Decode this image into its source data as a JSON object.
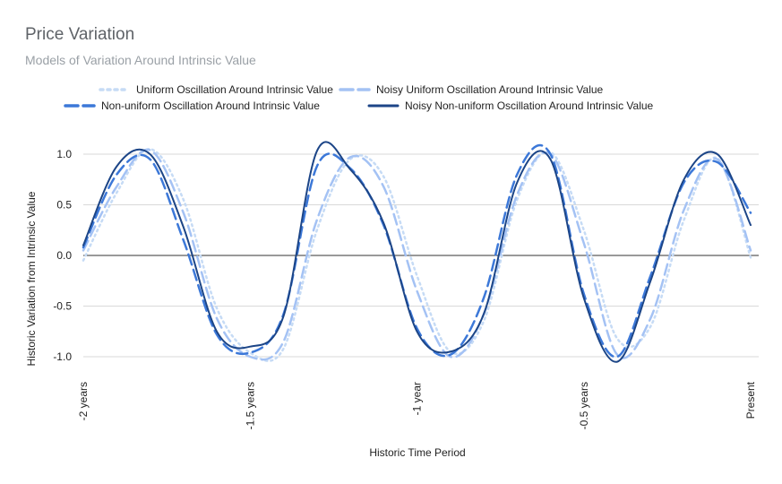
{
  "chart_data": {
    "type": "line",
    "title": "Price Variation",
    "subtitle": "Models of Variation Around Intrinsic Value",
    "xlabel": "Historic Time Period",
    "ylabel": "Historic Variation from Intrinsic Value",
    "ylim": [
      -1.0,
      1.0
    ],
    "xlim": [
      -2.0,
      0.0
    ],
    "y_ticks": [
      {
        "value": 1.0,
        "label": "1.0"
      },
      {
        "value": 0.5,
        "label": "0.5"
      },
      {
        "value": 0.0,
        "label": "0.0"
      },
      {
        "value": -0.5,
        "label": "-0.5"
      },
      {
        "value": -1.0,
        "label": "-1.0"
      }
    ],
    "x_ticks": [
      {
        "value": -2.0,
        "label": "-2 years"
      },
      {
        "value": -1.5,
        "label": "-1.5 years"
      },
      {
        "value": -1.0,
        "label": "-1 year"
      },
      {
        "value": -0.5,
        "label": "-0.5 years"
      },
      {
        "value": 0.0,
        "label": "Present"
      }
    ],
    "grid": true,
    "legend_position": "top",
    "series": [
      {
        "name": "Uniform Oscillation Around Intrinsic Value",
        "color": "#c6dbf5",
        "style": "dotted",
        "x": [
          -2.0,
          -1.9,
          -1.8,
          -1.7,
          -1.6,
          -1.5,
          -1.4,
          -1.3,
          -1.2,
          -1.1,
          -1.0,
          -0.9,
          -0.8,
          -0.7,
          -0.6,
          -0.5,
          -0.4,
          -0.3,
          -0.2,
          -0.1,
          0.0
        ],
        "y": [
          -0.05,
          0.62,
          1.05,
          0.55,
          -0.52,
          -0.96,
          -0.92,
          0.25,
          0.95,
          0.78,
          -0.2,
          -0.95,
          -0.65,
          0.55,
          1.02,
          0.25,
          -0.82,
          -0.7,
          0.35,
          0.96,
          -0.02
        ]
      },
      {
        "name": "Noisy Uniform Oscillation Around Intrinsic Value",
        "color": "#a4c2f4",
        "style": "dashed",
        "x": [
          -2.0,
          -1.9,
          -1.8,
          -1.7,
          -1.6,
          -1.5,
          -1.4,
          -1.3,
          -1.2,
          -1.1,
          -1.0,
          -0.9,
          -0.8,
          -0.7,
          -0.6,
          -0.5,
          -0.4,
          -0.3,
          -0.2,
          -0.1,
          0.0
        ],
        "y": [
          0.05,
          0.68,
          1.04,
          0.42,
          -0.62,
          -1.0,
          -0.85,
          0.35,
          0.97,
          0.68,
          -0.35,
          -1.0,
          -0.58,
          0.6,
          1.0,
          0.12,
          -0.98,
          -0.62,
          0.45,
          0.95,
          0.05
        ]
      },
      {
        "name": "Non-uniform Oscillation Around Intrinsic Value",
        "color": "#3c78d8",
        "style": "dashed",
        "x": [
          -2.0,
          -1.9,
          -1.8,
          -1.7,
          -1.6,
          -1.5,
          -1.4,
          -1.3,
          -1.2,
          -1.1,
          -1.0,
          -0.9,
          -0.8,
          -0.7,
          -0.6,
          -0.5,
          -0.4,
          -0.3,
          -0.2,
          -0.1,
          0.0
        ],
        "y": [
          0.08,
          0.8,
          0.95,
          0.15,
          -0.78,
          -0.96,
          -0.58,
          0.88,
          0.86,
          0.3,
          -0.72,
          -0.98,
          -0.42,
          0.8,
          1.0,
          -0.38,
          -1.0,
          -0.2,
          0.72,
          0.92,
          0.42
        ]
      },
      {
        "name": "Noisy Non-uniform Oscillation Around Intrinsic Value",
        "color": "#1c4587",
        "style": "solid",
        "x": [
          -2.0,
          -1.9,
          -1.8,
          -1.7,
          -1.6,
          -1.5,
          -1.4,
          -1.3,
          -1.2,
          -1.1,
          -1.0,
          -0.9,
          -0.8,
          -0.7,
          -0.6,
          -0.5,
          -0.4,
          -0.3,
          -0.2,
          -0.1,
          0.0
        ],
        "y": [
          0.1,
          0.88,
          1.0,
          0.28,
          -0.75,
          -0.9,
          -0.6,
          1.03,
          0.85,
          0.32,
          -0.75,
          -0.95,
          -0.58,
          0.72,
          0.95,
          -0.42,
          -1.05,
          -0.25,
          0.75,
          1.0,
          0.3
        ]
      }
    ]
  }
}
